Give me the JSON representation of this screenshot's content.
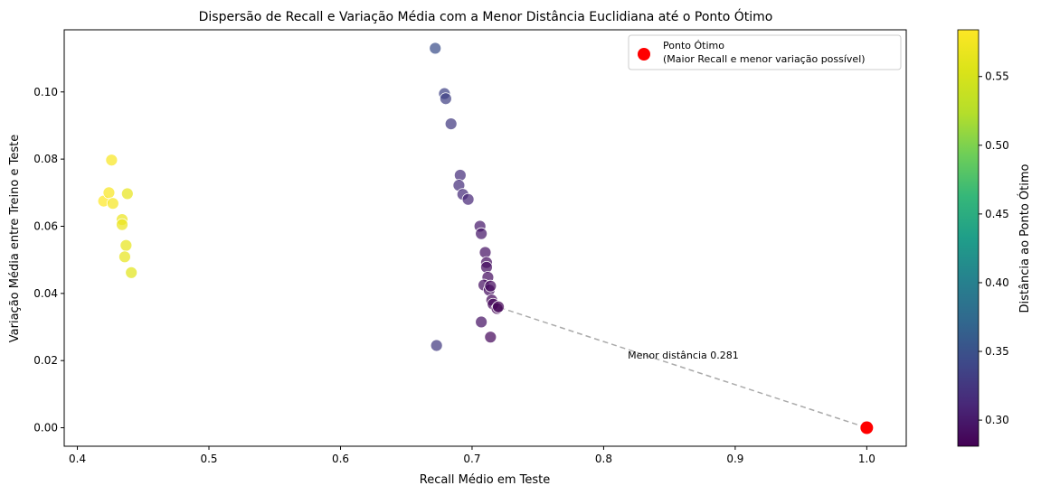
{
  "chart_data": {
    "type": "scatter",
    "title": "Dispersão de Recall e Variação Média com a Menor Distância Euclidiana até o Ponto Ótimo",
    "xlabel": "Recall Médio em Teste",
    "ylabel": "Variação Média entre Treino e Teste",
    "xlim": [
      0.39,
      1.03
    ],
    "ylim": [
      -0.0055,
      0.1185
    ],
    "xticks": [
      "0.4",
      "0.5",
      "0.6",
      "0.7",
      "0.8",
      "0.9",
      "1.0"
    ],
    "yticks": [
      "0.00",
      "0.02",
      "0.04",
      "0.06",
      "0.08",
      "0.10"
    ],
    "grid": false,
    "colormap": "viridis",
    "points": [
      {
        "x": 0.42,
        "y": 0.0675,
        "d": 0.584
      },
      {
        "x": 0.424,
        "y": 0.07,
        "d": 0.58
      },
      {
        "x": 0.426,
        "y": 0.0797,
        "d": 0.58
      },
      {
        "x": 0.427,
        "y": 0.0668,
        "d": 0.577
      },
      {
        "x": 0.434,
        "y": 0.062,
        "d": 0.569
      },
      {
        "x": 0.434,
        "y": 0.0605,
        "d": 0.569
      },
      {
        "x": 0.438,
        "y": 0.0697,
        "d": 0.566
      },
      {
        "x": 0.437,
        "y": 0.0543,
        "d": 0.565
      },
      {
        "x": 0.436,
        "y": 0.0509,
        "d": 0.566
      },
      {
        "x": 0.441,
        "y": 0.0462,
        "d": 0.561
      },
      {
        "x": 0.672,
        "y": 0.113,
        "d": 0.347
      },
      {
        "x": 0.679,
        "y": 0.0995,
        "d": 0.336
      },
      {
        "x": 0.68,
        "y": 0.098,
        "d": 0.334
      },
      {
        "x": 0.684,
        "y": 0.0905,
        "d": 0.328
      },
      {
        "x": 0.691,
        "y": 0.0752,
        "d": 0.318
      },
      {
        "x": 0.69,
        "y": 0.0722,
        "d": 0.318
      },
      {
        "x": 0.693,
        "y": 0.0695,
        "d": 0.315
      },
      {
        "x": 0.697,
        "y": 0.068,
        "d": 0.311
      },
      {
        "x": 0.706,
        "y": 0.06,
        "d": 0.3
      },
      {
        "x": 0.707,
        "y": 0.0578,
        "d": 0.299
      },
      {
        "x": 0.71,
        "y": 0.0522,
        "d": 0.295
      },
      {
        "x": 0.711,
        "y": 0.0492,
        "d": 0.293
      },
      {
        "x": 0.711,
        "y": 0.0478,
        "d": 0.293
      },
      {
        "x": 0.712,
        "y": 0.0448,
        "d": 0.291
      },
      {
        "x": 0.709,
        "y": 0.0425,
        "d": 0.294
      },
      {
        "x": 0.713,
        "y": 0.041,
        "d": 0.29
      },
      {
        "x": 0.714,
        "y": 0.0422,
        "d": 0.289
      },
      {
        "x": 0.715,
        "y": 0.038,
        "d": 0.288
      },
      {
        "x": 0.716,
        "y": 0.0368,
        "d": 0.287
      },
      {
        "x": 0.719,
        "y": 0.0355,
        "d": 0.284
      },
      {
        "x": 0.72,
        "y": 0.036,
        "d": 0.283
      },
      {
        "x": 0.707,
        "y": 0.0315,
        "d": 0.295
      },
      {
        "x": 0.714,
        "y": 0.027,
        "d": 0.287
      },
      {
        "x": 0.673,
        "y": 0.0245,
        "d": 0.328
      }
    ],
    "optimal_point": {
      "x": 1.0,
      "y": 0.0,
      "color": "#ff0000"
    },
    "min_distance_point": {
      "x": 0.721,
      "y": 0.0358
    },
    "annotation": "Menor distância 0.281",
    "legend": {
      "position": "top-right",
      "label_line1": "Ponto Ótimo",
      "label_line2": "(Maior Recall e menor variação possível)"
    },
    "colorbar": {
      "label": "Distância ao Ponto Ótimo",
      "range": [
        0.281,
        0.584
      ],
      "ticks": [
        "0.30",
        "0.35",
        "0.40",
        "0.45",
        "0.50",
        "0.55"
      ]
    }
  }
}
